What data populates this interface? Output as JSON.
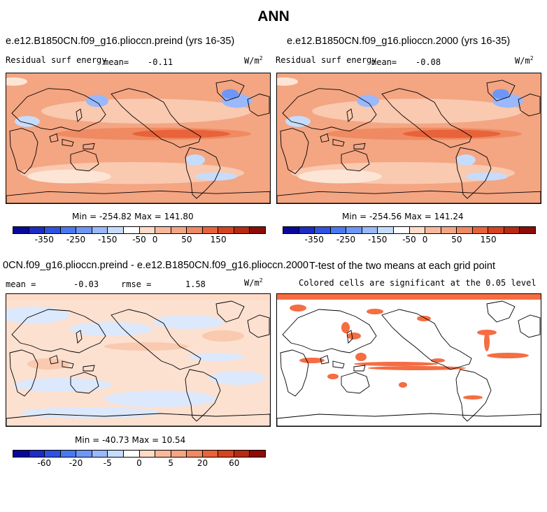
{
  "figure": {
    "title": "ANN"
  },
  "panels": {
    "p1": {
      "title": "e.e12.B1850CN.f09_g16.plioccn.preind (yrs 16-35)",
      "left": "Residual surf energy",
      "mean_label": "mean=",
      "mean_value": "-0.11",
      "units": "W/m",
      "units_sup": "2",
      "minmax": "Min = -254.82 Max = 141.80",
      "base_color": "#f4a582"
    },
    "p2": {
      "title": "e.e12.B1850CN.f09_g16.plioccn.2000 (yrs 16-35)",
      "left": "Residual surf energy",
      "mean_label": "mean=",
      "mean_value": "-0.08",
      "units": "W/m",
      "units_sup": "2",
      "minmax": "Min = -254.56 Max = 141.24",
      "base_color": "#f4a582"
    },
    "p3": {
      "title": "0CN.f09_g16.plioccn.preind - e.e12.B1850CN.f09_g16.plioccn.2000",
      "mean_label": "mean =",
      "mean_value": "-0.03",
      "rmse_label": "rmse =",
      "rmse_value": "1.58",
      "units": "W/m",
      "units_sup": "2",
      "minmax": "Min = -40.73 Max =  10.54",
      "base_color": "#fce0d0"
    },
    "p4": {
      "title": "T-test of the two means at each grid point",
      "subtitle": "Colored cells are significant at the 0.05 level",
      "base_color": "#ffffff"
    }
  },
  "colorbars": {
    "top": {
      "colors": [
        "#08089c",
        "#1c2cc4",
        "#2f52e0",
        "#4a78f0",
        "#6e96f6",
        "#9ab8fa",
        "#c6dcfc",
        "#ffffff",
        "#fddbc7",
        "#f9b89a",
        "#f4a582",
        "#ef8a62",
        "#e8623a",
        "#d6431f",
        "#b82a12",
        "#8c0c08"
      ],
      "ticks": [
        "-350",
        "-250",
        "-150",
        "-50",
        "0",
        "50",
        "150"
      ],
      "tick_edges": [
        2,
        4,
        6,
        8,
        9,
        11,
        13
      ]
    },
    "bottom": {
      "colors": [
        "#08089c",
        "#1c2cc4",
        "#2f52e0",
        "#4a78f0",
        "#6e96f6",
        "#9ab8fa",
        "#c6dcfc",
        "#ffffff",
        "#fddbc7",
        "#f9b89a",
        "#f4a582",
        "#ef8a62",
        "#e8623a",
        "#d6431f",
        "#b82a12",
        "#8c0c08"
      ],
      "ticks": [
        "-60",
        "-20",
        "-5",
        "0",
        "5",
        "20",
        "60"
      ],
      "tick_edges": [
        2,
        4,
        6,
        8,
        10,
        12,
        14
      ]
    }
  }
}
